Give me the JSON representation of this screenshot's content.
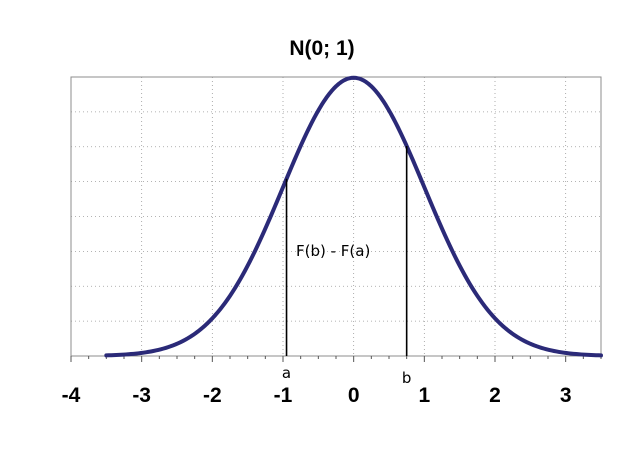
{
  "chart_data": {
    "type": "line",
    "title": "N(0; 1)",
    "xlabel": "",
    "ylabel": "",
    "xlim": [
      -4,
      3.5
    ],
    "ylim": [
      0,
      0.4
    ],
    "x_ticks": [
      -4,
      -3,
      -2,
      -1,
      0,
      1,
      2,
      3
    ],
    "x_tick_labels": [
      "-4",
      "-3",
      "-2",
      "-1",
      "0",
      "1",
      "2",
      "3"
    ],
    "grid": true,
    "series": [
      {
        "distribution": "standard normal density",
        "x_range": [
          -3.5,
          3.5
        ],
        "color": "#2b2a78"
      }
    ],
    "markers": [
      {
        "label": "a",
        "x": -0.95
      },
      {
        "label": "b",
        "x": 0.75
      }
    ],
    "annotation": "F(b) - F(a)"
  }
}
